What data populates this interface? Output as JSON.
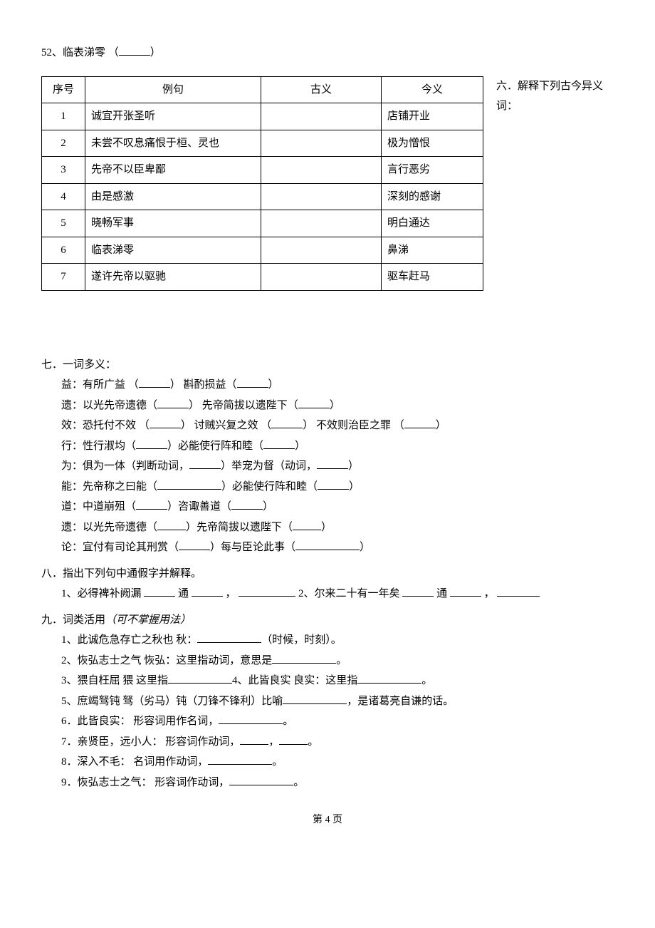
{
  "line52": {
    "num": "52、",
    "text": "临表涕零",
    "gap": "   （",
    "close": "）"
  },
  "section6": {
    "title_a": "六．解释下列古今异义",
    "title_b": "词："
  },
  "table": {
    "headers": [
      "序号",
      "例句",
      "古义",
      "今义"
    ],
    "rows": [
      {
        "seq": "1",
        "ex": "诚宜开张圣听",
        "old": "",
        "new": "店铺开业"
      },
      {
        "seq": "2",
        "ex": "未尝不叹息痛恨于桓、灵也",
        "old": "",
        "new": "极为憎恨"
      },
      {
        "seq": "3",
        "ex": "先帝不以臣卑鄙",
        "old": "",
        "new": "言行恶劣"
      },
      {
        "seq": "4",
        "ex": "由是感激",
        "old": "",
        "new": "深刻的感谢"
      },
      {
        "seq": "5",
        "ex": "晓畅军事",
        "old": "",
        "new": "明白通达"
      },
      {
        "seq": "6",
        "ex": "临表涕零",
        "old": "",
        "new": "鼻涕"
      },
      {
        "seq": "7",
        "ex": "遂许先帝以驱驰",
        "old": "",
        "new": "驱车赶马"
      }
    ]
  },
  "section7": {
    "title": "七．一词多义：",
    "items": [
      {
        "pre": "益：有所广益  （",
        "mid": "）       斟酌损益（",
        "post": "）"
      },
      {
        "pre": "遗：以光先帝遗德（",
        "mid": "）  先帝简拔以遗陛下（",
        "post": "）"
      },
      {
        "pre": "效：恐托付不效 （",
        "mid1": "）     讨贼兴复之效 （",
        "mid2": "）    不效则治臣之罪 （",
        "post": "）"
      },
      {
        "pre": "行：性行淑均（",
        "mid": "）必能使行阵和睦（",
        "post": "）"
      },
      {
        "pre": "为：俱为一体（判断动词，",
        "mid": "）举宠为督（动词，",
        "post": "）"
      },
      {
        "pre": "能：先帝称之曰能（",
        "mid": "）必能使行阵和睦（",
        "post": "）",
        "w1": "w90"
      },
      {
        "pre": "道：中道崩殂（",
        "mid": "）咨诹善道（",
        "post": "）"
      },
      {
        "pre": "遗：以光先帝遗德（",
        "mid": "）先帝简拔以遗陛下（",
        "post": "）",
        "sw": "short"
      },
      {
        "pre": "论：宜付有司论其刑赏（",
        "mid": "）每与臣论此事（",
        "post": "）",
        "w2": "w90"
      }
    ]
  },
  "section8": {
    "title": "八．指出下列句中通假字并解释。",
    "line1": {
      "a": "1、必得裨补阙漏           ",
      "b": "通",
      "c": "，",
      "d": "2、尔来二十有一年矣  ",
      "e": "通",
      "f": "，"
    }
  },
  "section9": {
    "title_a": "九．词类活用",
    "title_b": "（可不掌握用法）",
    "items": [
      {
        "text_a": "1、此诚危急存亡之秋也    秋：",
        "text_b": "（时候，时刻）。",
        "w": "w90"
      },
      {
        "text_a": "2、恢弘志士之气         恢弘：这里指动词，意思是",
        "text_b": "。",
        "w": "w90"
      },
      {
        "text_a": "3、猥自枉屈             猥 这里指",
        "text_b": "4、此皆良实     良实：这里指",
        "text_c": "。",
        "w": "w90",
        "w2": "w90"
      },
      {
        "text_a": "5、庶竭驽钝             驽（劣马）钝（刀锋不锋利）比喻",
        "text_b": "，是诸葛亮自谦的话。",
        "w": "w90"
      },
      {
        "text_a": "6．此皆良实：         形容词用作名词，",
        "text_b": "。",
        "w": "w90"
      },
      {
        "text_a": "7．亲贤臣，远小人：  形容词作动词，",
        "text_b": "，",
        "text_c": "。",
        "w": "short",
        "w2": "short"
      },
      {
        "text_a": "8．深入不毛：         名词用作动词，",
        "text_b": "。",
        "w": "w90"
      },
      {
        "text_a": "9．恢弘志士之气：   形容词作动词，",
        "text_b": "。",
        "w": "w90"
      }
    ]
  },
  "footer": "第 4 页"
}
